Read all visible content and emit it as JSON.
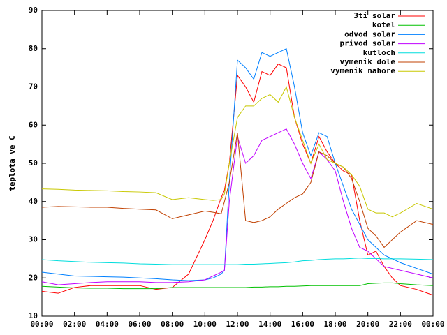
{
  "chart_data": {
    "type": "line",
    "ylabel": "teplota ve C",
    "x": [
      0,
      1,
      2,
      3,
      4,
      5,
      6,
      7,
      8,
      9,
      10,
      10.5,
      11,
      11.2,
      11.5,
      12,
      12.5,
      13,
      13.5,
      14,
      14.5,
      15,
      15.5,
      16,
      16.5,
      17,
      17.5,
      18,
      18.5,
      19,
      19.5,
      20,
      20.5,
      21,
      21.5,
      22,
      23,
      24
    ],
    "xlim": [
      0,
      24
    ],
    "xticks": [
      {
        "value": 0,
        "label": "00:00"
      },
      {
        "value": 2,
        "label": "02:00"
      },
      {
        "value": 4,
        "label": "04:00"
      },
      {
        "value": 6,
        "label": "06:00"
      },
      {
        "value": 8,
        "label": "08:00"
      },
      {
        "value": 10,
        "label": "10:00"
      },
      {
        "value": 12,
        "label": "12:00"
      },
      {
        "value": 14,
        "label": "14:00"
      },
      {
        "value": 16,
        "label": "16:00"
      },
      {
        "value": 18,
        "label": "18:00"
      },
      {
        "value": 20,
        "label": "20:00"
      },
      {
        "value": 22,
        "label": "22:00"
      },
      {
        "value": 24,
        "label": "00:00"
      }
    ],
    "ylim": [
      10,
      90
    ],
    "yticks": [
      10,
      20,
      30,
      40,
      50,
      60,
      70,
      80,
      90
    ],
    "legend": "top-right",
    "series": [
      {
        "name": "3ti solar",
        "color": "#ff0000",
        "values": [
          16.5,
          16,
          17.5,
          18,
          18,
          18,
          18,
          17,
          17.5,
          21,
          30,
          35,
          41,
          43,
          50,
          73,
          70,
          66,
          74,
          73,
          76,
          75,
          62,
          55,
          50,
          57,
          53,
          50,
          48,
          47,
          35,
          26,
          27,
          23,
          20,
          18,
          17,
          15.5
        ]
      },
      {
        "name": "kotel",
        "color": "#00c000",
        "values": [
          17.8,
          17.6,
          17.4,
          17.3,
          17.3,
          17.2,
          17.2,
          17.2,
          17.5,
          17.5,
          17.5,
          17.5,
          17.5,
          17.5,
          17.5,
          17.5,
          17.5,
          17.6,
          17.6,
          17.7,
          17.7,
          17.8,
          17.8,
          17.9,
          18,
          18,
          18,
          18,
          18,
          18,
          18,
          18.5,
          18.6,
          18.7,
          18.7,
          18.5,
          18.2,
          18
        ]
      },
      {
        "name": "odvod solar",
        "color": "#0080ff",
        "values": [
          21.5,
          21,
          20.5,
          20.4,
          20.3,
          20.2,
          20,
          19.8,
          19.5,
          19.3,
          19.5,
          20,
          21,
          22,
          45,
          77,
          75,
          72,
          79,
          78,
          79,
          80,
          70,
          58,
          52,
          58,
          57,
          50,
          44,
          38,
          34,
          30,
          28,
          26,
          25,
          24,
          22.5,
          21
        ]
      },
      {
        "name": "privod solar",
        "color": "#c000ff",
        "values": [
          19,
          18.2,
          18.5,
          18.8,
          19,
          19,
          19,
          18.8,
          18.8,
          19,
          19.5,
          20.5,
          21.5,
          22,
          40,
          57,
          50,
          52,
          56,
          57,
          58,
          59,
          55,
          50,
          46,
          53,
          51,
          48,
          40,
          33,
          28,
          27,
          25,
          23,
          22.5,
          22,
          21,
          20
        ]
      },
      {
        "name": "kutloch",
        "color": "#00dddd",
        "values": [
          24.8,
          24.5,
          24.3,
          24.1,
          24,
          23.9,
          23.7,
          23.6,
          23.5,
          23.5,
          23.5,
          23.5,
          23.5,
          23.5,
          23.5,
          23.5,
          23.6,
          23.6,
          23.7,
          23.8,
          23.9,
          24,
          24.2,
          24.5,
          24.6,
          24.8,
          24.9,
          25,
          25,
          25.1,
          25.2,
          25.1,
          25.1,
          25,
          25,
          25,
          24.9,
          24.8
        ]
      },
      {
        "name": "vymenik dole",
        "color": "#c04000",
        "values": [
          38.5,
          38.7,
          38.6,
          38.5,
          38.5,
          38.2,
          38,
          37.8,
          35.5,
          36.5,
          37.5,
          37.2,
          36.8,
          40,
          45,
          58,
          35,
          34.5,
          35,
          36,
          38,
          39.5,
          41,
          42,
          45,
          53,
          52,
          50,
          49,
          46,
          40,
          33,
          31,
          28,
          30,
          32,
          35,
          34
        ]
      },
      {
        "name": "vymenik nahore",
        "color": "#c8c800",
        "values": [
          43.3,
          43.2,
          43,
          42.9,
          42.8,
          42.6,
          42.5,
          42.3,
          40.5,
          41,
          40.5,
          40.3,
          40.5,
          42,
          50,
          62,
          65,
          65,
          67,
          68,
          66,
          70,
          62,
          56,
          50,
          55,
          51,
          50,
          49,
          47,
          44,
          38,
          37,
          37,
          36,
          37,
          39.5,
          38
        ]
      }
    ]
  }
}
